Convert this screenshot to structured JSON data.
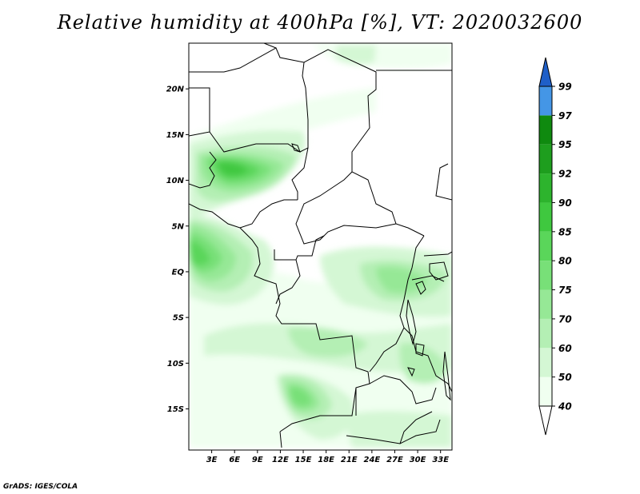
{
  "title": "Relative humidity at 400hPa [%], VT: 2020032600",
  "credit": "GrADS: IGES/COLA",
  "map": {
    "lon_range": [
      0,
      34.5
    ],
    "lat_range": [
      -19.5,
      25
    ],
    "lat_ticks": [
      {
        "value": 20,
        "label": "20N"
      },
      {
        "value": 15,
        "label": "15N"
      },
      {
        "value": 10,
        "label": "10N"
      },
      {
        "value": 5,
        "label": "5N"
      },
      {
        "value": 0,
        "label": "EQ"
      },
      {
        "value": -5,
        "label": "5S"
      },
      {
        "value": -10,
        "label": "10S"
      },
      {
        "value": -15,
        "label": "15S"
      }
    ],
    "lon_ticks": [
      {
        "value": 3,
        "label": "3E"
      },
      {
        "value": 6,
        "label": "6E"
      },
      {
        "value": 9,
        "label": "9E"
      },
      {
        "value": 12,
        "label": "12E"
      },
      {
        "value": 15,
        "label": "15E"
      },
      {
        "value": 18,
        "label": "18E"
      },
      {
        "value": 21,
        "label": "21E"
      },
      {
        "value": 24,
        "label": "24E"
      },
      {
        "value": 27,
        "label": "27E"
      },
      {
        "value": 30,
        "label": "30E"
      },
      {
        "value": 33,
        "label": "33E"
      }
    ]
  },
  "colorbar": {
    "levels": [
      {
        "label": "40",
        "color": "#f0fff0"
      },
      {
        "label": "50",
        "color": "#d4f7d4"
      },
      {
        "label": "60",
        "color": "#b4efb4"
      },
      {
        "label": "70",
        "color": "#96e896"
      },
      {
        "label": "75",
        "color": "#78e078"
      },
      {
        "label": "80",
        "color": "#5ad65a"
      },
      {
        "label": "85",
        "color": "#3fc83f"
      },
      {
        "label": "90",
        "color": "#2db42d"
      },
      {
        "label": "92",
        "color": "#1e9e1e"
      },
      {
        "label": "95",
        "color": "#0f8a0f"
      },
      {
        "label": "97",
        "color": "#4496e6"
      },
      {
        "label": "99",
        "color": "#2070d8"
      }
    ],
    "top_color": "#1f5fc8"
  },
  "chart_data": {
    "type": "heatmap",
    "variable": "Relative humidity at 400hPa",
    "units": "%",
    "valid_time": "2020032600",
    "x_range": [
      0,
      34.5
    ],
    "y_range": [
      -19.5,
      25
    ],
    "contour_levels": [
      40,
      50,
      60,
      70,
      75,
      80,
      85,
      90,
      92,
      95,
      97,
      99
    ],
    "humid_regions": [
      {
        "lon": 6,
        "lat": 10.5,
        "value": 85
      },
      {
        "lon": 3,
        "lat": 10,
        "value": 85
      },
      {
        "lon": 1,
        "lat": 5,
        "value": 80
      },
      {
        "lon": 1.5,
        "lat": 0,
        "value": 80
      },
      {
        "lon": 15,
        "lat": -13,
        "value": 85
      },
      {
        "lon": 27,
        "lat": -1,
        "value": 75
      },
      {
        "lon": 22,
        "lat": -7,
        "value": 70
      },
      {
        "lon": 26,
        "lat": -18,
        "value": 70
      },
      {
        "lon": 25,
        "lat": 24,
        "value": 60
      }
    ]
  }
}
